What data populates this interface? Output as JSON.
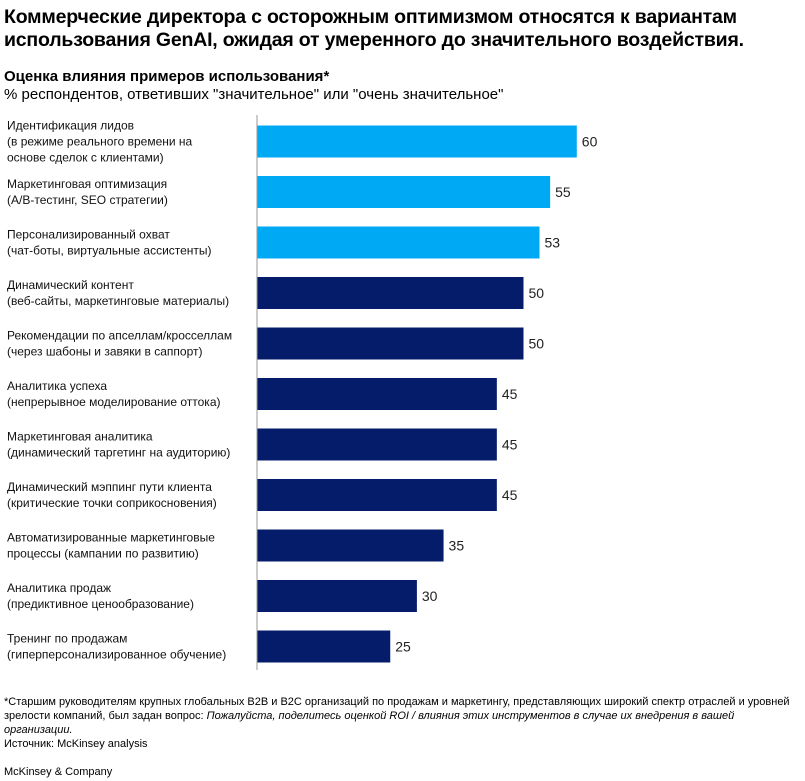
{
  "header": {
    "title_line1": "Коммерческие директора с осторожным оптимизмом относятся к вариантам",
    "title_line2": "использования GenAI, ожидая от умеренного до значительного воздействия.",
    "subtitle": "Оценка влияния примеров использования*",
    "unit": "% респондентов, ответивших \"значительное\" или \"очень значительное\""
  },
  "chart_data": {
    "type": "bar",
    "orientation": "horizontal",
    "title": "Оценка влияния примеров использования*",
    "xlabel": "% респондентов, ответивших \"значительное\" или \"очень значительное\"",
    "ylabel": "",
    "xlim": [
      0,
      60
    ],
    "grid": false,
    "legend": "none",
    "categories": [
      [
        "Идентификация лидов",
        "(в режиме реального времени на",
        "основе сделок с клиентами)"
      ],
      [
        "Маркетинговая оптимизация",
        "(A/B-тестинг, SEO стратегии)"
      ],
      [
        "Персонализированный охват",
        "(чат-боты, виртуальные ассистенты)"
      ],
      [
        "Динамический контент",
        "(веб-сайты, маркетинговые материалы)"
      ],
      [
        "Рекомендации по апселлам/кросселлам",
        "(через шабоны и завяки в саппорт)"
      ],
      [
        "Аналитика успеха",
        "(непрерывное моделирование оттока)"
      ],
      [
        "Маркетинговая аналитика",
        "(динамический таргетинг на аудиторию)"
      ],
      [
        "Динамический мэппинг пути клиента",
        "(критические точки соприкосновения)"
      ],
      [
        "Автоматизированные маркетинговые",
        "процессы (кампании по развитию)"
      ],
      [
        "Аналитика продаж",
        "(предиктивное ценообразование)"
      ],
      [
        "Тренинг по продажам",
        "(гиперперсонализированное обучение)"
      ]
    ],
    "values": [
      60,
      55,
      53,
      50,
      50,
      45,
      45,
      45,
      35,
      30,
      25
    ],
    "highlight_count": 3,
    "colors": {
      "highlight": "#00a9f4",
      "default": "#051c6b",
      "axis": "#9a9a9a"
    }
  },
  "footnote": {
    "text": "*Старшим руководителям крупных глобальных B2B и B2C организаций по продажам и маркетингу, представляющих широкий спектр отраслей и уровней зрелости компаний, был задан вопрос: ",
    "question": "Пожалуйста, поделитесь оценкой ROI / влияния этих инструментов в случае их внедрения в вашей организации.",
    "source": "Источник: McKinsey analysis",
    "brand": "McKinsey & Company"
  }
}
